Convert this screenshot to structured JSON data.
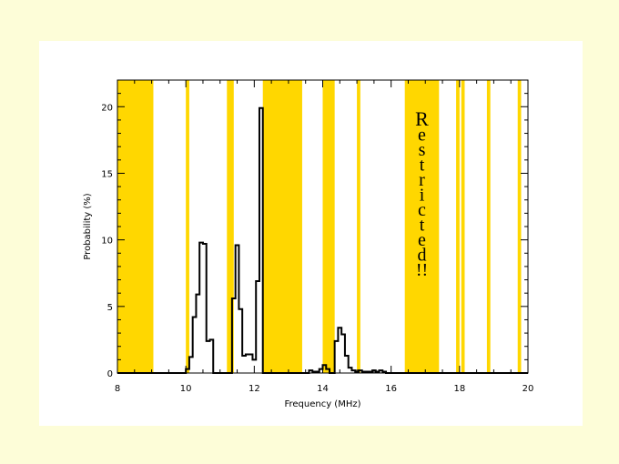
{
  "chart_data": {
    "type": "bar",
    "subtype": "histogram",
    "xlabel": "Frequency (MHz)",
    "ylabel": "Probability (%)",
    "xlim": [
      8,
      20
    ],
    "ylim": [
      0,
      22
    ],
    "xticks": [
      8,
      10,
      12,
      14,
      16,
      18,
      20
    ],
    "yticks": [
      0,
      5,
      10,
      15,
      20
    ],
    "bin_width": 0.1,
    "histogram": [
      {
        "x": 10.0,
        "y": 0.3
      },
      {
        "x": 10.1,
        "y": 1.2
      },
      {
        "x": 10.2,
        "y": 4.2
      },
      {
        "x": 10.3,
        "y": 5.9
      },
      {
        "x": 10.4,
        "y": 9.8
      },
      {
        "x": 10.5,
        "y": 9.7
      },
      {
        "x": 10.6,
        "y": 2.4
      },
      {
        "x": 10.7,
        "y": 2.5
      },
      {
        "x": 11.35,
        "y": 5.6
      },
      {
        "x": 11.45,
        "y": 9.6
      },
      {
        "x": 11.55,
        "y": 4.8
      },
      {
        "x": 11.65,
        "y": 1.3
      },
      {
        "x": 11.75,
        "y": 1.4
      },
      {
        "x": 11.85,
        "y": 1.4
      },
      {
        "x": 11.95,
        "y": 1.0
      },
      {
        "x": 12.05,
        "y": 6.9
      },
      {
        "x": 12.15,
        "y": 19.9
      },
      {
        "x": 13.6,
        "y": 0.2
      },
      {
        "x": 13.7,
        "y": 0.1
      },
      {
        "x": 13.8,
        "y": 0.1
      },
      {
        "x": 13.9,
        "y": 0.3
      },
      {
        "x": 14.0,
        "y": 0.6
      },
      {
        "x": 14.1,
        "y": 0.3
      },
      {
        "x": 14.35,
        "y": 2.4
      },
      {
        "x": 14.45,
        "y": 3.4
      },
      {
        "x": 14.55,
        "y": 2.9
      },
      {
        "x": 14.65,
        "y": 1.3
      },
      {
        "x": 14.75,
        "y": 0.4
      },
      {
        "x": 14.85,
        "y": 0.2
      },
      {
        "x": 14.95,
        "y": 0.1
      },
      {
        "x": 15.05,
        "y": 0.2
      },
      {
        "x": 15.15,
        "y": 0.1
      },
      {
        "x": 15.25,
        "y": 0.1
      },
      {
        "x": 15.35,
        "y": 0.1
      },
      {
        "x": 15.45,
        "y": 0.2
      },
      {
        "x": 15.55,
        "y": 0.1
      },
      {
        "x": 15.65,
        "y": 0.2
      },
      {
        "x": 15.75,
        "y": 0.1
      }
    ],
    "restricted_bands": [
      [
        8.0,
        9.05
      ],
      [
        10.0,
        10.1
      ],
      [
        11.2,
        11.4
      ],
      [
        12.25,
        13.4
      ],
      [
        14.0,
        14.35
      ],
      [
        15.0,
        15.1
      ],
      [
        16.4,
        17.4
      ],
      [
        17.9,
        18.0
      ],
      [
        18.05,
        18.15
      ],
      [
        18.8,
        18.9
      ],
      [
        19.7,
        19.8
      ]
    ],
    "band_color": "#ffd700",
    "annotation": "Restricted!!",
    "annotation_at": 16.9
  }
}
